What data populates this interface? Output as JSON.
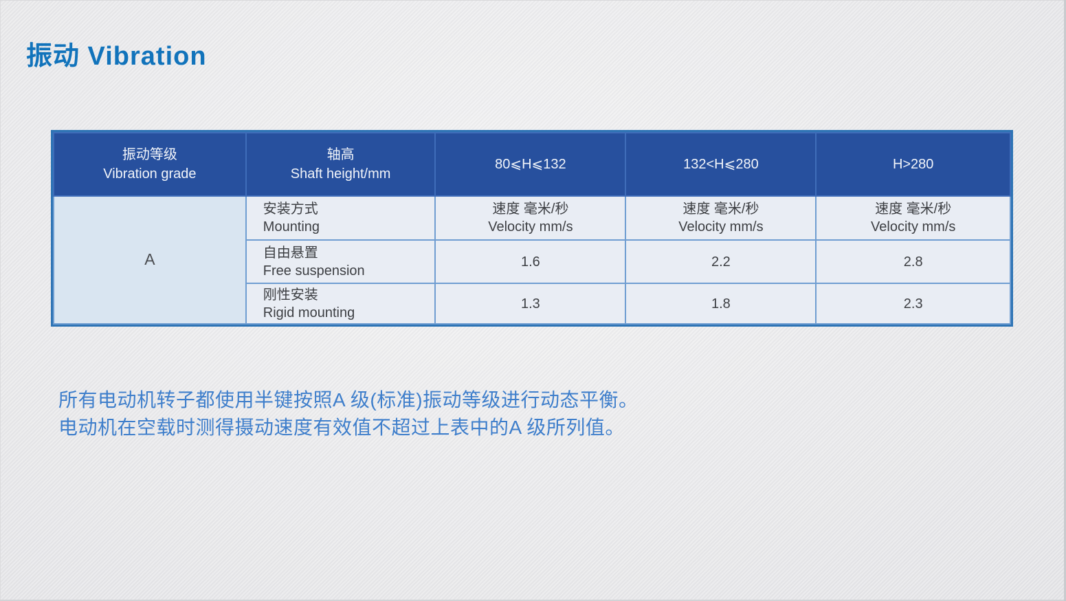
{
  "title": "振动  Vibration",
  "table": {
    "header": [
      {
        "line1": "振动等级",
        "line2": "Vibration grade"
      },
      {
        "line1": "轴高",
        "line2": "Shaft height/mm"
      },
      {
        "line1": "80⩽H⩽132"
      },
      {
        "line1": "132<H⩽280"
      },
      {
        "line1": "H>280"
      }
    ],
    "grade": "A",
    "rows": [
      {
        "label_zh": "安装方式",
        "label_en": "Mounting",
        "c1_zh": "速度 毫米/秒",
        "c1_en": "Velocity mm/s",
        "c2_zh": "速度 毫米/秒",
        "c2_en": "Velocity mm/s",
        "c3_zh": "速度 毫米/秒",
        "c3_en": "Velocity mm/s"
      },
      {
        "label_zh": "自由悬置",
        "label_en": "Free suspension",
        "c1": "1.6",
        "c2": "2.2",
        "c3": "2.8"
      },
      {
        "label_zh": "刚性安装",
        "label_en": "Rigid mounting",
        "c1": "1.3",
        "c2": "1.8",
        "c3": "2.3"
      }
    ]
  },
  "notes": {
    "line1": "所有电动机转子都使用半键按照A 级(标准)振动等级进行动态平衡。",
    "line2": "电动机在空载时测得摄动速度有效值不超过上表中的A 级所列值。"
  },
  "colors": {
    "title_blue": "#1173bb",
    "table_outer_border": "#2e74b5",
    "header_bg": "#27509e",
    "header_text": "#f2f5fa",
    "grade_col_bg": "#d9e5f1",
    "cell_bg": "#e9edf4",
    "cell_border": "#6f9dd1",
    "note_blue": "#3e7ecb",
    "page_bg": "#e9e9eb"
  }
}
